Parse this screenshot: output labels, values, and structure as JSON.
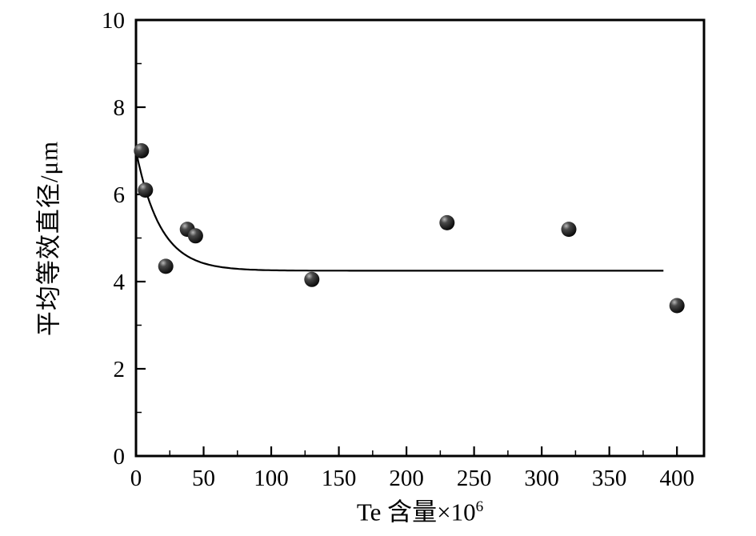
{
  "page": {
    "background": "#ffffff"
  },
  "labels": {
    "y": "平均等效直径/μm",
    "x_base": "Te 含量×10",
    "x_sup": "6"
  },
  "chart_data": {
    "type": "scatter",
    "title": "",
    "xlabel": "Te 含量×10⁶",
    "ylabel": "平均等效直径/μm",
    "xlim": [
      0,
      420
    ],
    "ylim": [
      0,
      10
    ],
    "x_major_ticks": [
      0,
      50,
      100,
      150,
      200,
      250,
      300,
      350,
      400
    ],
    "x_minor_step": 25,
    "y_major_ticks": [
      0,
      2,
      4,
      6,
      8,
      10
    ],
    "y_minor_step": 1,
    "grid": false,
    "legend": "none",
    "marker_color": "#111111",
    "line_color": "#000000",
    "points": [
      {
        "x": 4,
        "y": 7.0
      },
      {
        "x": 7,
        "y": 6.1
      },
      {
        "x": 22,
        "y": 4.35
      },
      {
        "x": 38,
        "y": 5.2
      },
      {
        "x": 44,
        "y": 5.05
      },
      {
        "x": 130,
        "y": 4.05
      },
      {
        "x": 230,
        "y": 5.35
      },
      {
        "x": 320,
        "y": 5.2
      },
      {
        "x": 400,
        "y": 3.45
      }
    ],
    "fit_curve": {
      "model": "y0 + A*exp(-x/tau)",
      "y0": 4.25,
      "A": 2.75,
      "tau": 18,
      "x_start": 0,
      "x_end": 390
    }
  }
}
